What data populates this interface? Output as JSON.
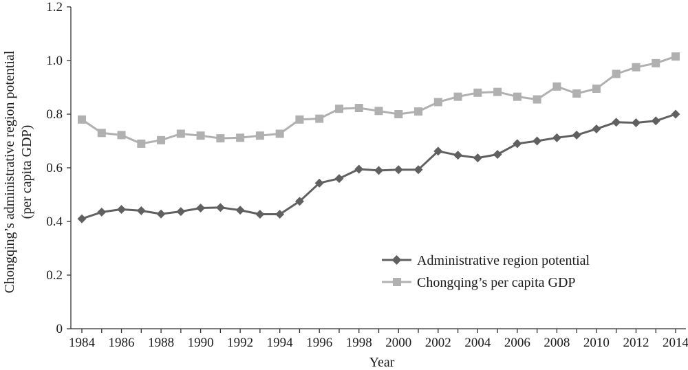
{
  "chart_data": {
    "type": "line",
    "title": "",
    "xlabel": "Year",
    "ylabel_line1": "Chongqing’s administrative region potential",
    "ylabel_line2": "(per capita GDP)",
    "ylim": [
      0,
      1.2
    ],
    "yticks": [
      "0",
      "0.2",
      "0.4",
      "0.6",
      "0.8",
      "1.0",
      "1.2"
    ],
    "xticks": [
      "1984",
      "1986",
      "1988",
      "1990",
      "1992",
      "1994",
      "1996",
      "1998",
      "2000",
      "2002",
      "2004",
      "2006",
      "2008",
      "2010",
      "2012",
      "2014"
    ],
    "x": [
      1984,
      1985,
      1986,
      1987,
      1988,
      1989,
      1990,
      1991,
      1992,
      1993,
      1994,
      1995,
      1996,
      1997,
      1998,
      1999,
      2000,
      2001,
      2002,
      2003,
      2004,
      2005,
      2006,
      2007,
      2008,
      2009,
      2010,
      2011,
      2012,
      2013,
      2014
    ],
    "legend_position": "center-right",
    "series": [
      {
        "name": "Administrative region potential",
        "color": "#606060",
        "marker": "diamond",
        "values": [
          0.41,
          0.435,
          0.445,
          0.44,
          0.428,
          0.437,
          0.45,
          0.452,
          0.442,
          0.427,
          0.427,
          0.475,
          0.543,
          0.56,
          0.595,
          0.59,
          0.593,
          0.593,
          0.662,
          0.647,
          0.637,
          0.65,
          0.69,
          0.7,
          0.712,
          0.722,
          0.745,
          0.77,
          0.768,
          0.775,
          0.8
        ]
      },
      {
        "name": "Chongqing’s per capita GDP",
        "color": "#b0b0b0",
        "marker": "square",
        "values": [
          0.78,
          0.73,
          0.722,
          0.69,
          0.703,
          0.727,
          0.72,
          0.71,
          0.712,
          0.72,
          0.727,
          0.78,
          0.783,
          0.82,
          0.823,
          0.812,
          0.8,
          0.81,
          0.845,
          0.865,
          0.88,
          0.883,
          0.865,
          0.855,
          0.903,
          0.877,
          0.895,
          0.95,
          0.975,
          0.99,
          1.015
        ]
      }
    ]
  }
}
